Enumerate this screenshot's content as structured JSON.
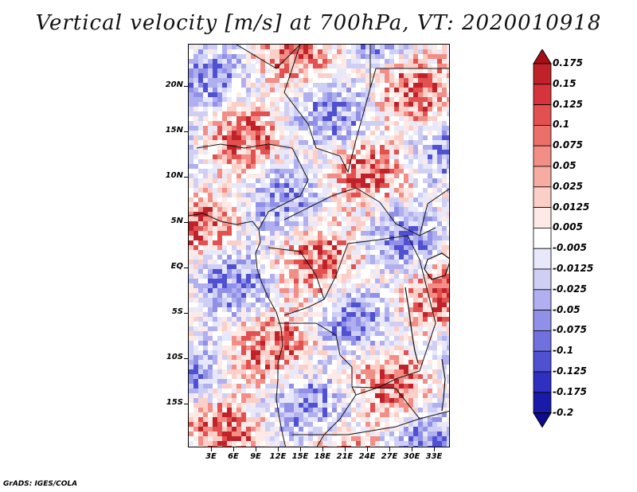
{
  "title": "Vertical velocity [m/s] at 700hPa, VT: 2020010918",
  "credit": "GrADS: IGES/COLA",
  "lat_labels": [
    "20N",
    "15N",
    "10N",
    "5N",
    "EQ",
    "5S",
    "10S",
    "15S"
  ],
  "lon_labels": [
    "3E",
    "6E",
    "9E",
    "12E",
    "15E",
    "18E",
    "21E",
    "24E",
    "27E",
    "30E",
    "33E"
  ],
  "colorbar": {
    "labels": [
      "0.175",
      "0.15",
      "0.125",
      "0.1",
      "0.075",
      "0.05",
      "0.025",
      "0.0125",
      "0.005",
      "-0.005",
      "-0.0125",
      "-0.025",
      "-0.05",
      "-0.075",
      "-0.1",
      "-0.125",
      "-0.175",
      "-0.2"
    ],
    "colors": [
      "#a50f15",
      "#c0222a",
      "#d6343a",
      "#e2504f",
      "#ec6f69",
      "#f28e86",
      "#f7aca2",
      "#fbcfc7",
      "#fdeae6",
      "#ffffff",
      "#e8e8fb",
      "#cfcff6",
      "#b0b0f0",
      "#9090e8",
      "#7070de",
      "#5050d2",
      "#3030c0",
      "#1a1aa8",
      "#0c0c8c"
    ]
  }
}
